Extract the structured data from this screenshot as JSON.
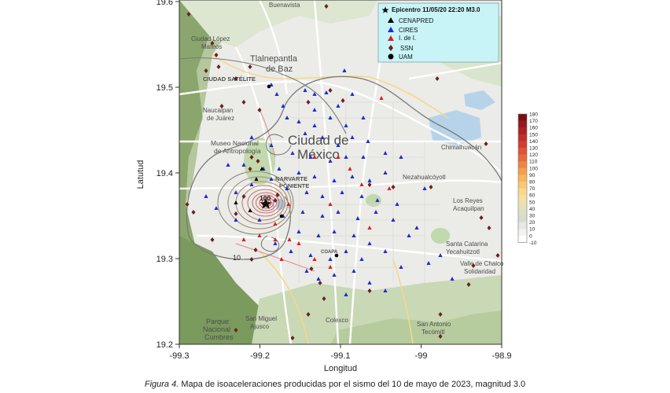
{
  "map": {
    "y_axis_label": "Latutud",
    "x_axis_label": "Longitud",
    "x_ticks": [
      "-99.3",
      "-99.2",
      "-99.1",
      "-99",
      "-98.9"
    ],
    "y_ticks": [
      "19.6",
      "19.5",
      "19.4",
      "19.3",
      "19.2"
    ],
    "x_range": [
      -99.3,
      -98.9
    ],
    "y_range": [
      19.2,
      19.6
    ],
    "places": {
      "buenavista": "Buenavista",
      "ciudad_lopez_mateos": "Ciudad López\nMateos",
      "tlalnepantla": "Tlalnepantla\nde Baz",
      "ciudad_satelite": "CIUDAD SATÉLITE",
      "naucalpan": "Naucalpan\nde Juárez",
      "museo": "Museo Nacional\nde Antropología",
      "cdmx": "Ciudad de\nMéxico",
      "chimalhuacan": "Chimalhuacán",
      "nezahualcoyotl": "Nezahualcóyotl",
      "los_reyes": "Los Reyes\nAcaquilpan",
      "santa_catarina": "Santa Catarina\nYecahuitzotl",
      "valle_chalco": "Valle de Chalco\nSolidaridad",
      "san_miguel": "San Miguel\nAjusco",
      "colexco": "Colexco",
      "san_antonio": "San Antonio\nTecómitl",
      "parque": "Parque\nNacional\nCumbres",
      "narvarte": "NARVARTE\nPONIENTE",
      "coapa": "COAPA"
    },
    "contour_labels": [
      "10",
      "100"
    ]
  },
  "legend": {
    "epicentro": "Epicentro 11/05/20   22:20   M3.0",
    "items": [
      {
        "label": "CENAPRED",
        "symbol": "triangle",
        "color": "#000000"
      },
      {
        "label": "CIRES",
        "symbol": "triangle",
        "color": "#1a2fcc"
      },
      {
        "label": "I. de I.",
        "symbol": "triangle",
        "color": "#d62020"
      },
      {
        "label": "SSN",
        "symbol": "diamond",
        "color": "#6b1f1f"
      },
      {
        "label": "UAM",
        "symbol": "circle",
        "color": "#000000"
      }
    ],
    "background": "#c8f4f8"
  },
  "colorbar": {
    "ticks": [
      "180",
      "170",
      "160",
      "150",
      "140",
      "130",
      "120",
      "110",
      "100",
      "90",
      "80",
      "70",
      "60",
      "50",
      "40",
      "30",
      "20",
      "10",
      "0",
      "-10"
    ]
  },
  "caption": {
    "figure": "Figura 4.",
    "text": " Mapa de isoaceleraciones producidas por el sismo del 10 de mayo de 2023, magnitud 3.0"
  }
}
